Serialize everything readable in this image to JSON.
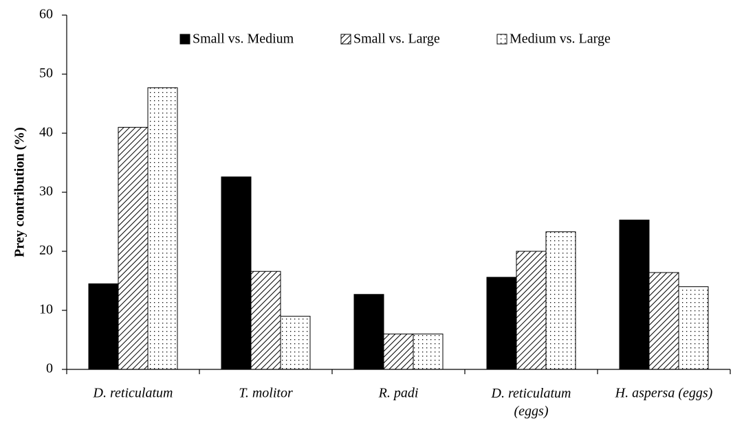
{
  "chart_data": {
    "type": "bar",
    "y_label": "Prey contribution (%)",
    "categories": [
      "D. reticulatum",
      "T. molitor",
      "R. padi",
      "D. reticulatum\n(eggs)",
      "H. aspersa (eggs)"
    ],
    "series": [
      {
        "name": "Small vs. Medium",
        "color": "#000000",
        "pattern": "solid",
        "values": [
          14.5,
          32.6,
          12.7,
          15.6,
          25.3
        ]
      },
      {
        "name": "Small vs. Large",
        "color": "#000000",
        "pattern": "hatch",
        "values": [
          41,
          16.6,
          6,
          20,
          16.4
        ]
      },
      {
        "name": "Medium vs. Large",
        "color": "#000000",
        "pattern": "dots",
        "values": [
          47.7,
          9,
          6,
          23.3,
          14
        ]
      }
    ],
    "ylim": [
      0,
      60
    ],
    "yticks": [
      0,
      10,
      20,
      30,
      40,
      50,
      60
    ],
    "legend": "top"
  }
}
